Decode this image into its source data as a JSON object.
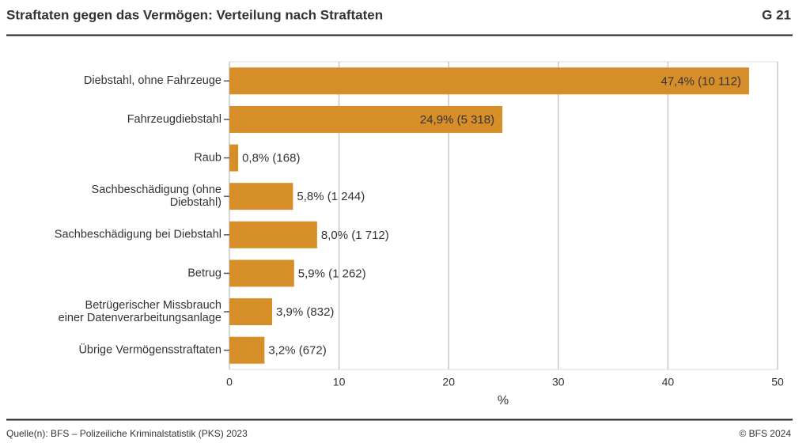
{
  "chart_data": {
    "type": "bar",
    "orientation": "horizontal",
    "title": "Straftaten gegen das Vermögen: Verteilung nach Straftaten",
    "chart_id": "G 21",
    "categories": [
      "Diebstahl, ohne Fahrzeuge",
      "Fahrzeugdiebstahl",
      "Raub",
      "Sachbeschädigung (ohne\nDiebstahl)",
      "Sachbeschädigung bei Diebstahl",
      "Betrug",
      "Betrügerischer Missbrauch\neiner Datenverarbeitungsanlage",
      "Übrige Vermögensstraftaten"
    ],
    "values": [
      47.4,
      24.9,
      0.8,
      5.8,
      8.0,
      5.9,
      3.9,
      3.2
    ],
    "value_labels": [
      "47,4% (10 112)",
      "24,9% (5 318)",
      "0,8% (168)",
      "5,8% (1 244)",
      "8,0% (1 712)",
      "5,9% (1 262)",
      "3,9% (832)",
      "3,2% (672)"
    ],
    "color": "#d68e28",
    "xlabel": "%",
    "xlim": [
      0,
      50
    ],
    "xticks": [
      0,
      10,
      20,
      30,
      40,
      50
    ],
    "grid": true,
    "source": "Quelle(n): BFS – Polizeiliche Kriminalstatistik (PKS) 2023",
    "copyright": "© BFS 2024"
  }
}
